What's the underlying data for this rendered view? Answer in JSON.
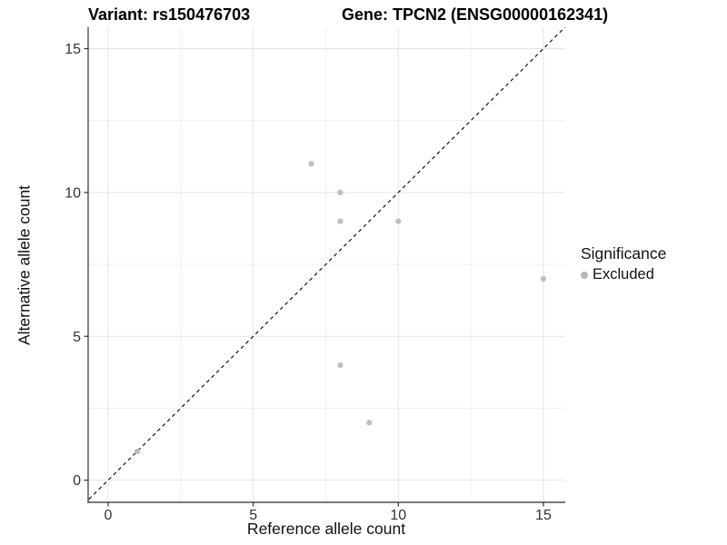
{
  "chart_data": {
    "type": "scatter",
    "title_left": "Variant: rs150476703",
    "title_right": "Gene: TPCN2 (ENSG00000162341)",
    "xlabel": "Reference allele count",
    "ylabel": "Alternative allele count",
    "xlim": [
      -0.7,
      15.8
    ],
    "ylim": [
      -0.8,
      15.7
    ],
    "x_ticks": [
      0,
      5,
      10,
      15
    ],
    "y_ticks": [
      0,
      5,
      10,
      15
    ],
    "x_minor_ticks": [
      2.5,
      7.5,
      12.5
    ],
    "y_minor_ticks": [
      2.5,
      7.5,
      12.5
    ],
    "grid": true,
    "identity_line": {
      "type": "y=x",
      "style": "dashed",
      "color": "#000000"
    },
    "series": [
      {
        "name": "Excluded",
        "color": "#bdbdbd",
        "points": [
          [
            1,
            1
          ],
          [
            7,
            11
          ],
          [
            8,
            4
          ],
          [
            8,
            9
          ],
          [
            8,
            10
          ],
          [
            9,
            2
          ],
          [
            10,
            9
          ],
          [
            15,
            7
          ]
        ]
      }
    ],
    "legend": {
      "title": "Significance",
      "position": "right",
      "entries": [
        {
          "label": "Excluded",
          "color": "#b5b5b5"
        }
      ]
    },
    "colors": {
      "major_grid": "#e4e4e4",
      "minor_grid": "#f0f0f0",
      "axis_line": "#4d4d4d",
      "tick_mark": "#333333",
      "point": "#bdbdbd"
    }
  }
}
